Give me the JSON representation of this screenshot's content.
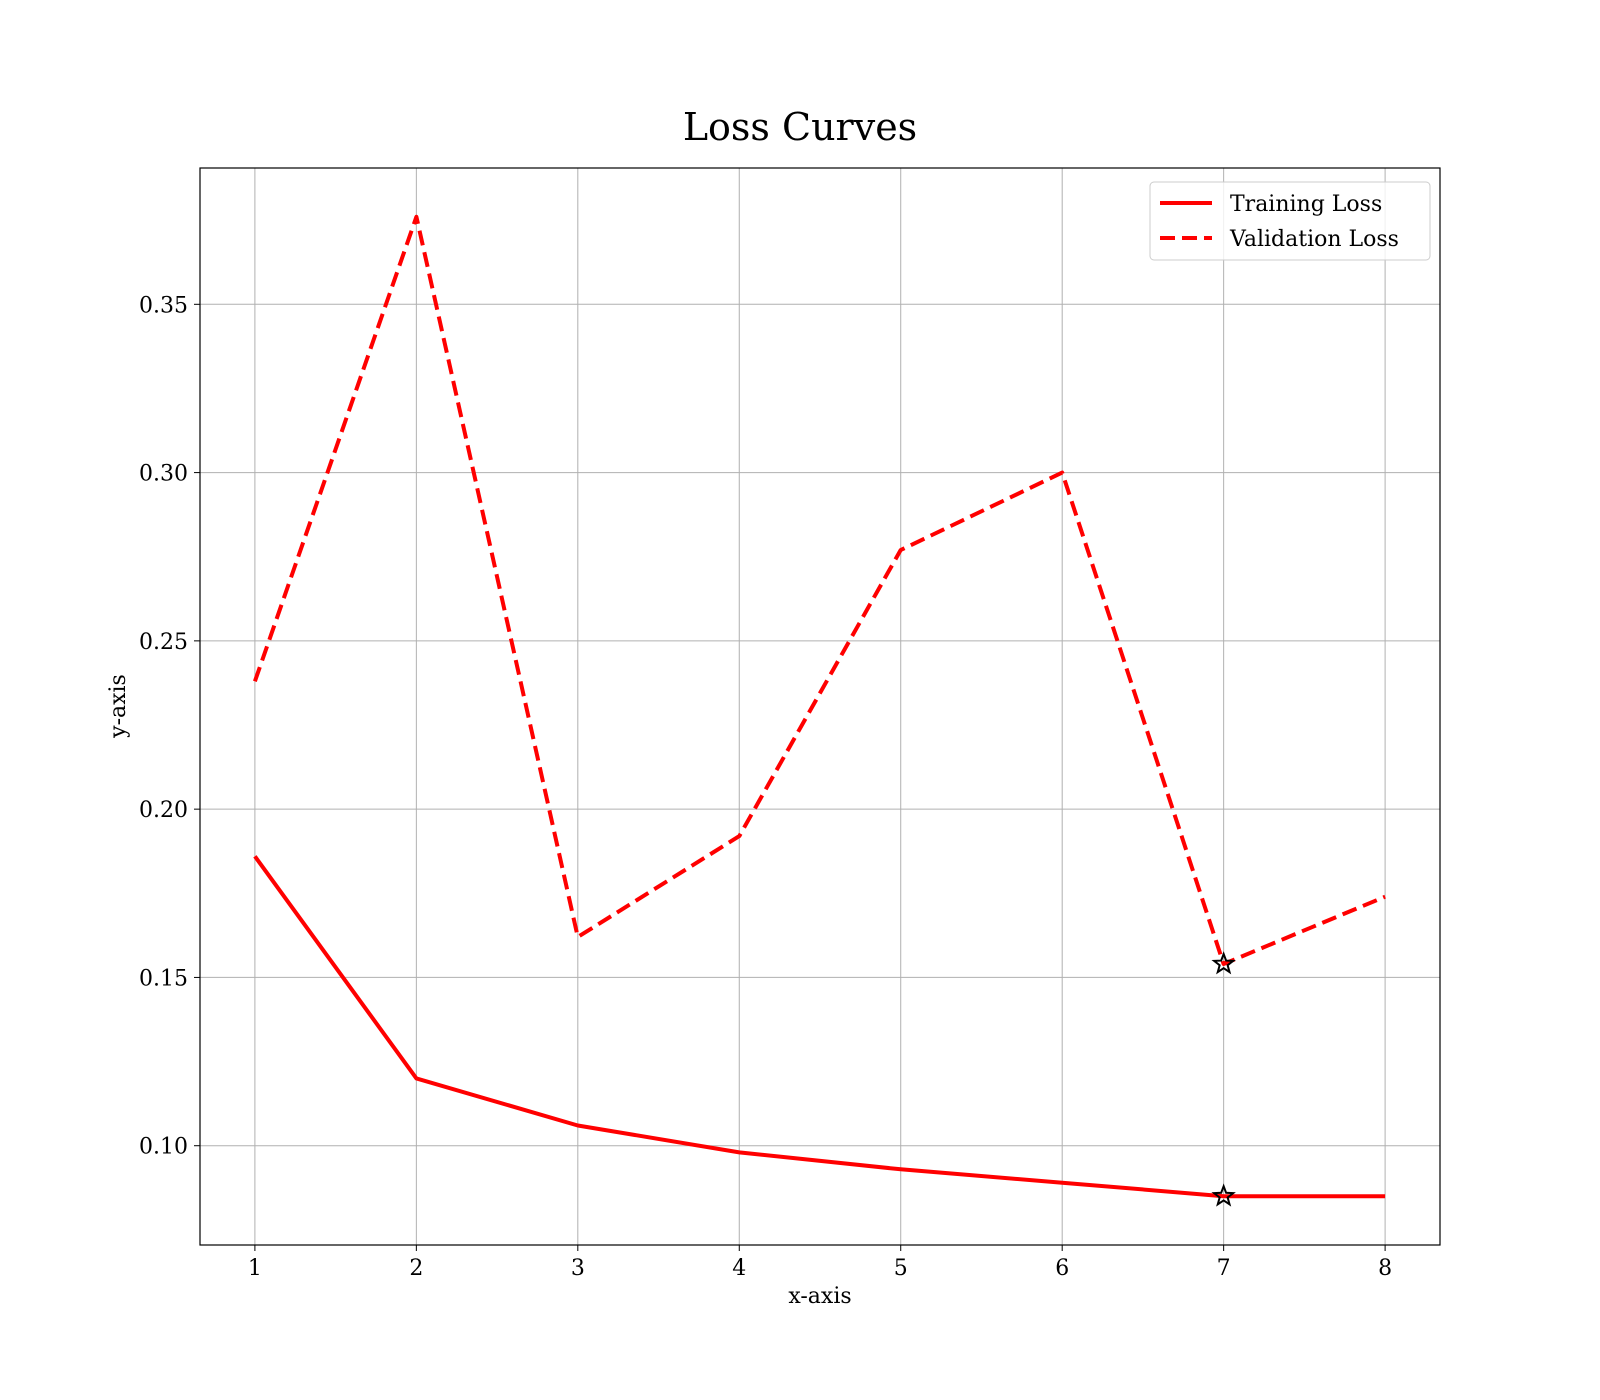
{
  "chart_data": {
    "type": "line",
    "title": "Loss Curves",
    "xlabel": "x-axis",
    "ylabel": "y-axis",
    "x": [
      1,
      2,
      3,
      4,
      5,
      6,
      7,
      8
    ],
    "xlim": [
      0.66,
      8.34
    ],
    "ylim": [
      0.0705,
      0.3905
    ],
    "xticks": [
      1,
      2,
      3,
      4,
      5,
      6,
      7,
      8
    ],
    "yticks": [
      0.1,
      0.15,
      0.2,
      0.25,
      0.3,
      0.35
    ],
    "ytick_labels": [
      "0.10",
      "0.15",
      "0.20",
      "0.25",
      "0.30",
      "0.35"
    ],
    "xtick_labels": [
      "1",
      "2",
      "3",
      "4",
      "5",
      "6",
      "7",
      "8"
    ],
    "grid": true,
    "legend_position": "top-right",
    "series": [
      {
        "name": "Training Loss",
        "style": "solid",
        "color": "#ff0000",
        "values": [
          0.186,
          0.12,
          0.106,
          0.098,
          0.093,
          0.089,
          0.085,
          0.085
        ]
      },
      {
        "name": "Validation Loss",
        "style": "dashed",
        "color": "#ff0000",
        "values": [
          0.238,
          0.376,
          0.162,
          0.192,
          0.277,
          0.3,
          0.154,
          0.174
        ]
      }
    ],
    "markers": [
      {
        "series": "Training Loss",
        "x": 7,
        "y": 0.085,
        "shape": "star",
        "color": "#000000"
      },
      {
        "series": "Validation Loss",
        "x": 7,
        "y": 0.154,
        "shape": "star",
        "color": "#000000"
      }
    ]
  }
}
